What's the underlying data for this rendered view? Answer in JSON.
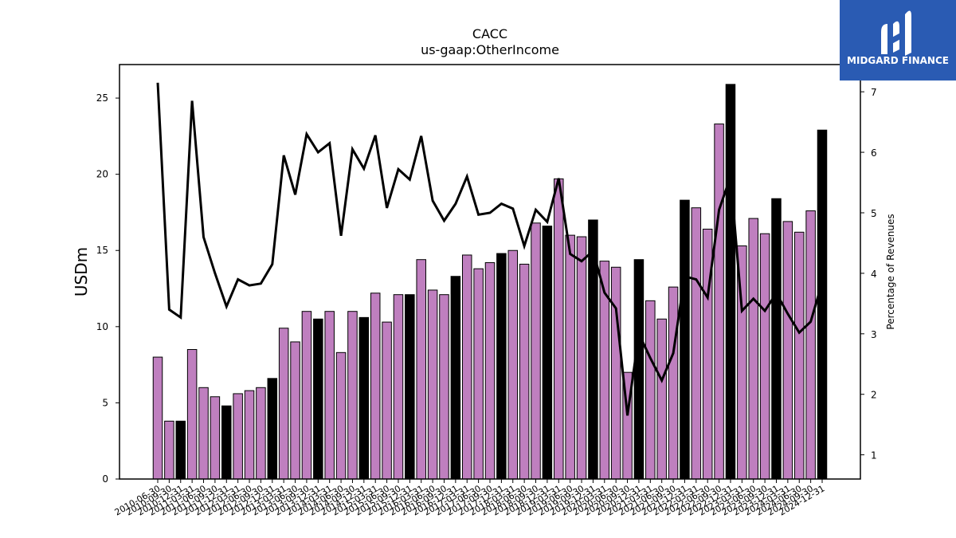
{
  "chart_data": {
    "type": "bar",
    "title": "CACC",
    "subtitle": "us-gaap:OtherIncome",
    "ylabel": "USDm",
    "y2label": "Percentage of Revenues",
    "ylim": [
      0,
      27.2
    ],
    "y2lim": [
      0.6,
      7.45
    ],
    "yticks": [
      0,
      5,
      10,
      15,
      20,
      25
    ],
    "y2ticks": [
      1,
      2,
      3,
      4,
      5,
      6,
      7
    ],
    "colors": {
      "quarter": "#bf7fbf",
      "year_end": "#000000",
      "line": "#000000"
    },
    "categories": [
      "2010-06-30",
      "2010-09-30",
      "2010-12-31",
      "2011-03-31",
      "2011-06-30",
      "2011-09-30",
      "2011-12-31",
      "2012-03-31",
      "2012-06-30",
      "2012-09-30",
      "2012-12-31",
      "2013-03-31",
      "2013-06-30",
      "2013-09-30",
      "2013-12-31",
      "2014-03-31",
      "2014-06-30",
      "2014-09-30",
      "2014-12-31",
      "2015-03-31",
      "2015-06-30",
      "2015-09-30",
      "2015-12-31",
      "2016-03-31",
      "2016-06-30",
      "2016-09-30",
      "2016-12-31",
      "2017-03-31",
      "2017-06-30",
      "2017-09-30",
      "2017-12-31",
      "2018-03-31",
      "2018-06-30",
      "2018-09-30",
      "2018-12-31",
      "2019-03-31",
      "2019-06-30",
      "2019-09-30",
      "2019-12-31",
      "2020-03-31",
      "2020-06-30",
      "2020-09-30",
      "2020-12-31",
      "2021-03-31",
      "2021-06-30",
      "2021-09-30",
      "2021-12-31",
      "2022-03-31",
      "2022-06-30",
      "2022-09-30",
      "2022-12-31",
      "2023-03-31",
      "2023-06-30",
      "2023-09-30",
      "2023-12-31",
      "2024-03-31",
      "2024-06-30",
      "2024-09-30",
      "2024-12-31"
    ],
    "series": [
      {
        "values": [
          8.0,
          3.8,
          3.8,
          8.5,
          6.0,
          5.4,
          4.8,
          5.6,
          5.8,
          6.0,
          6.6,
          9.9,
          9.0,
          11.0,
          10.5,
          11.0,
          8.3,
          11.0,
          10.6,
          12.2,
          10.3,
          12.1,
          12.1,
          14.4,
          12.4,
          12.1,
          13.3,
          14.7,
          13.8,
          14.2,
          14.8,
          15.0,
          14.1,
          16.8,
          16.6,
          19.7,
          16.0,
          15.9,
          17.0,
          14.3,
          13.9,
          7.0,
          14.4,
          11.7,
          10.5,
          12.6,
          18.3,
          17.8,
          16.4,
          23.3,
          25.9,
          15.3,
          17.1,
          16.1,
          18.4,
          16.9,
          16.2,
          17.6,
          22.9
        ],
        "year_end": [
          false,
          false,
          true,
          false,
          false,
          false,
          true,
          false,
          false,
          false,
          true,
          false,
          false,
          false,
          true,
          false,
          false,
          false,
          true,
          false,
          false,
          false,
          true,
          false,
          false,
          false,
          true,
          false,
          false,
          false,
          true,
          false,
          false,
          false,
          true,
          false,
          false,
          false,
          true,
          false,
          false,
          false,
          true,
          false,
          false,
          false,
          true,
          false,
          false,
          false,
          true,
          false,
          false,
          false,
          true,
          false,
          false,
          false,
          true
        ]
      },
      {
        "values": [
          7.15,
          3.4,
          3.27,
          6.85,
          4.6,
          4.0,
          3.45,
          3.9,
          3.8,
          3.83,
          4.15,
          5.95,
          5.3,
          6.3,
          6.0,
          6.15,
          4.62,
          6.05,
          5.73,
          6.28,
          5.08,
          5.72,
          5.55,
          6.27,
          5.2,
          4.87,
          5.15,
          5.6,
          4.97,
          5.0,
          5.15,
          5.07,
          4.45,
          5.05,
          4.85,
          5.57,
          4.32,
          4.2,
          4.37,
          3.68,
          3.42,
          1.65,
          3.0,
          2.6,
          2.23,
          2.68,
          3.95,
          3.9,
          3.6,
          5.05,
          5.6,
          3.38,
          3.58,
          3.38,
          3.67,
          3.33,
          3.02,
          3.2,
          3.85
        ]
      }
    ]
  },
  "logo": {
    "text": "MIDGARD FINANCE"
  }
}
